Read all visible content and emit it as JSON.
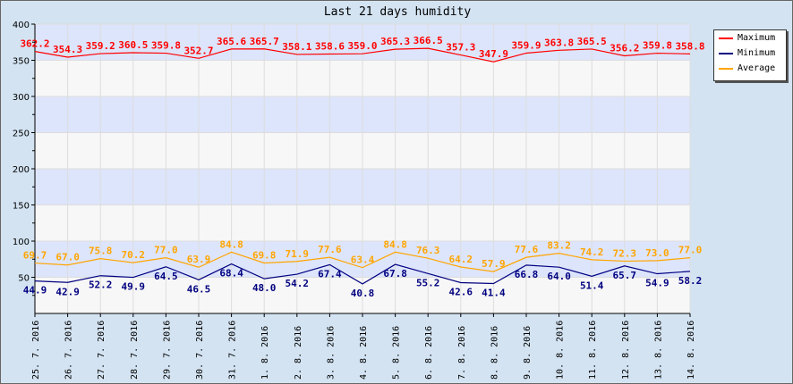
{
  "chart_data": {
    "type": "line",
    "title": "Last 21 days humidity",
    "categories": [
      "25. 7. 2016",
      "26. 7. 2016",
      "27. 7. 2016",
      "28. 7. 2016",
      "29. 7. 2016",
      "30. 7. 2016",
      "31. 7. 2016",
      "1. 8. 2016",
      "2. 8. 2016",
      "3. 8. 2016",
      "4. 8. 2016",
      "5. 8. 2016",
      "6. 8. 2016",
      "7. 8. 2016",
      "8. 8. 2016",
      "9. 8. 2016",
      "10. 8. 2016",
      "11. 8. 2016",
      "12. 8. 2016",
      "13. 8. 2016",
      "14. 8. 2016"
    ],
    "ylim": [
      0,
      400
    ],
    "yticks": [
      50,
      100,
      150,
      200,
      250,
      300,
      350,
      400
    ],
    "grid": true,
    "legend_position": "right",
    "series": [
      {
        "name": "Maximum",
        "color": "#ff0000",
        "values": [
          362.2,
          354.3,
          359.2,
          360.5,
          359.8,
          352.7,
          365.6,
          365.7,
          358.1,
          358.6,
          359.0,
          365.3,
          366.5,
          357.3,
          347.9,
          359.9,
          363.8,
          365.5,
          356.2,
          359.8,
          358.8
        ]
      },
      {
        "name": "Minimum",
        "color": "#000080",
        "values": [
          44.9,
          42.9,
          52.2,
          49.9,
          64.5,
          46.5,
          68.4,
          48.0,
          54.2,
          67.4,
          40.8,
          67.8,
          55.2,
          42.6,
          41.4,
          66.8,
          64.0,
          51.4,
          65.7,
          54.9,
          58.2
        ]
      },
      {
        "name": "Average",
        "color": "#ffa500",
        "values": [
          69.7,
          67.0,
          75.8,
          70.2,
          77.0,
          63.9,
          84.8,
          69.8,
          71.9,
          77.6,
          63.4,
          84.8,
          76.3,
          64.2,
          57.9,
          77.6,
          83.2,
          74.2,
          72.3,
          73.0,
          77.0
        ]
      }
    ]
  }
}
